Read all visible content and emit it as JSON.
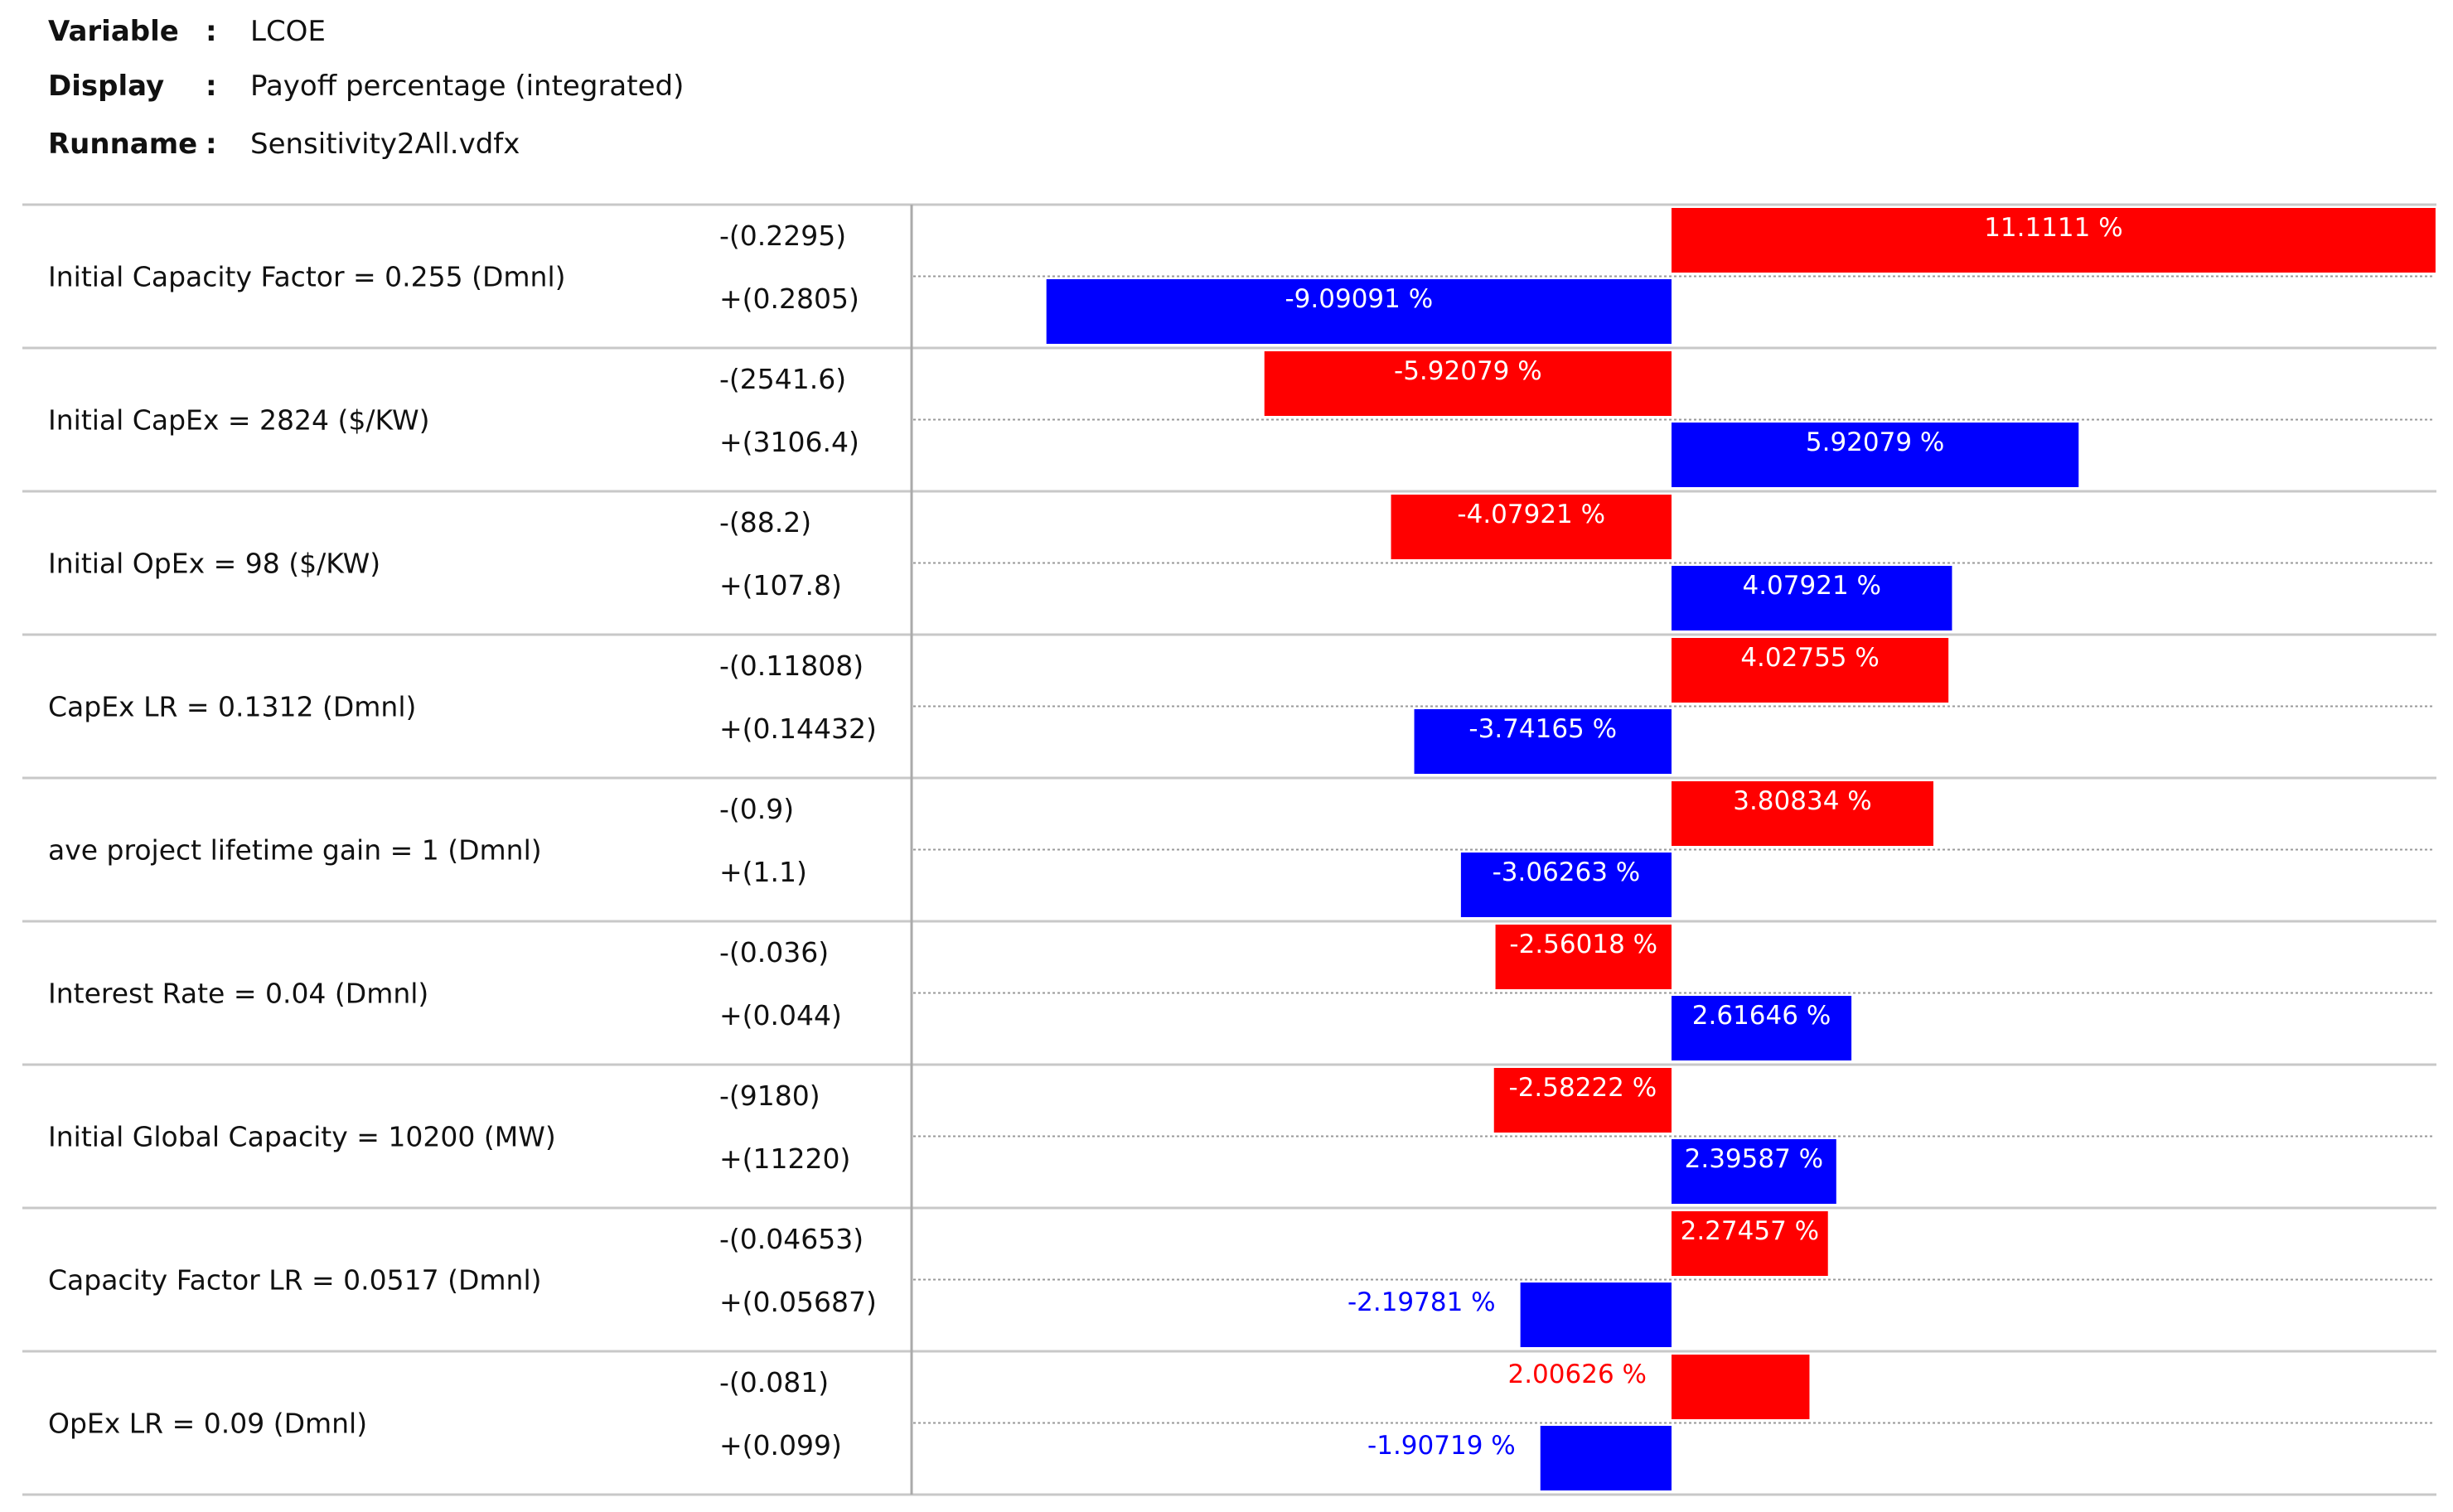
{
  "header": {
    "variable_label": "Variable",
    "variable_value": "LCOE",
    "display_label": "Display",
    "display_value": "Payoff percentage (integrated)",
    "runname_label": "Runname",
    "runname_value": "Sensitivity2All.vdfx",
    "separator": ":"
  },
  "colors": {
    "low_case": "#ff0000",
    "high_case": "#0000ff",
    "grid_line": "#c8c8c8",
    "dotted_line": "#999999",
    "axis_line": "#aaaaaa"
  },
  "chart_data": {
    "type": "bar",
    "orientation": "horizontal",
    "style": "tornado",
    "baseline": 0,
    "xlim": [
      -11.1,
      11.1
    ],
    "unit_suffix": " %",
    "grid": true,
    "items": [
      {
        "parameter": "Initial Capacity Factor = 0.255 (Dmnl)",
        "low_label": "-(0.2295)",
        "low_value": 11.1111,
        "low_text": "11.1111 %",
        "high_label": "+(0.2805)",
        "high_value": -9.09091,
        "high_text": "-9.09091 %"
      },
      {
        "parameter": "Initial CapEx = 2824 ($/KW)",
        "low_label": "-(2541.6)",
        "low_value": -5.92079,
        "low_text": "-5.92079 %",
        "high_label": "+(3106.4)",
        "high_value": 5.92079,
        "high_text": "5.92079 %"
      },
      {
        "parameter": "Initial OpEx = 98 ($/KW)",
        "low_label": "-(88.2)",
        "low_value": -4.07921,
        "low_text": "-4.07921 %",
        "high_label": "+(107.8)",
        "high_value": 4.07921,
        "high_text": "4.07921 %"
      },
      {
        "parameter": "CapEx LR = 0.1312 (Dmnl)",
        "low_label": "-(0.11808)",
        "low_value": 4.02755,
        "low_text": "4.02755 %",
        "high_label": "+(0.14432)",
        "high_value": -3.74165,
        "high_text": "-3.74165 %"
      },
      {
        "parameter": "ave project lifetime gain = 1 (Dmnl)",
        "low_label": "-(0.9)",
        "low_value": 3.80834,
        "low_text": "3.80834 %",
        "high_label": "+(1.1)",
        "high_value": -3.06263,
        "high_text": "-3.06263 %"
      },
      {
        "parameter": "Interest Rate = 0.04 (Dmnl)",
        "low_label": "-(0.036)",
        "low_value": -2.56018,
        "low_text": "-2.56018 %",
        "high_label": "+(0.044)",
        "high_value": 2.61646,
        "high_text": "2.61646 %"
      },
      {
        "parameter": "Initial Global Capacity = 10200 (MW)",
        "low_label": "-(9180)",
        "low_value": -2.58222,
        "low_text": "-2.58222 %",
        "high_label": "+(11220)",
        "high_value": 2.39587,
        "high_text": "2.39587 %"
      },
      {
        "parameter": "Capacity Factor LR = 0.0517 (Dmnl)",
        "low_label": "-(0.04653)",
        "low_value": 2.27457,
        "low_text": "2.27457 %",
        "high_label": "+(0.05687)",
        "high_value": -2.19781,
        "high_text": "-2.19781 %"
      },
      {
        "parameter": "OpEx LR = 0.09 (Dmnl)",
        "low_label": "-(0.081)",
        "low_value": 2.00626,
        "low_text": "2.00626 %",
        "high_label": "+(0.099)",
        "high_value": -1.90719,
        "high_text": "-1.90719 %"
      }
    ]
  }
}
